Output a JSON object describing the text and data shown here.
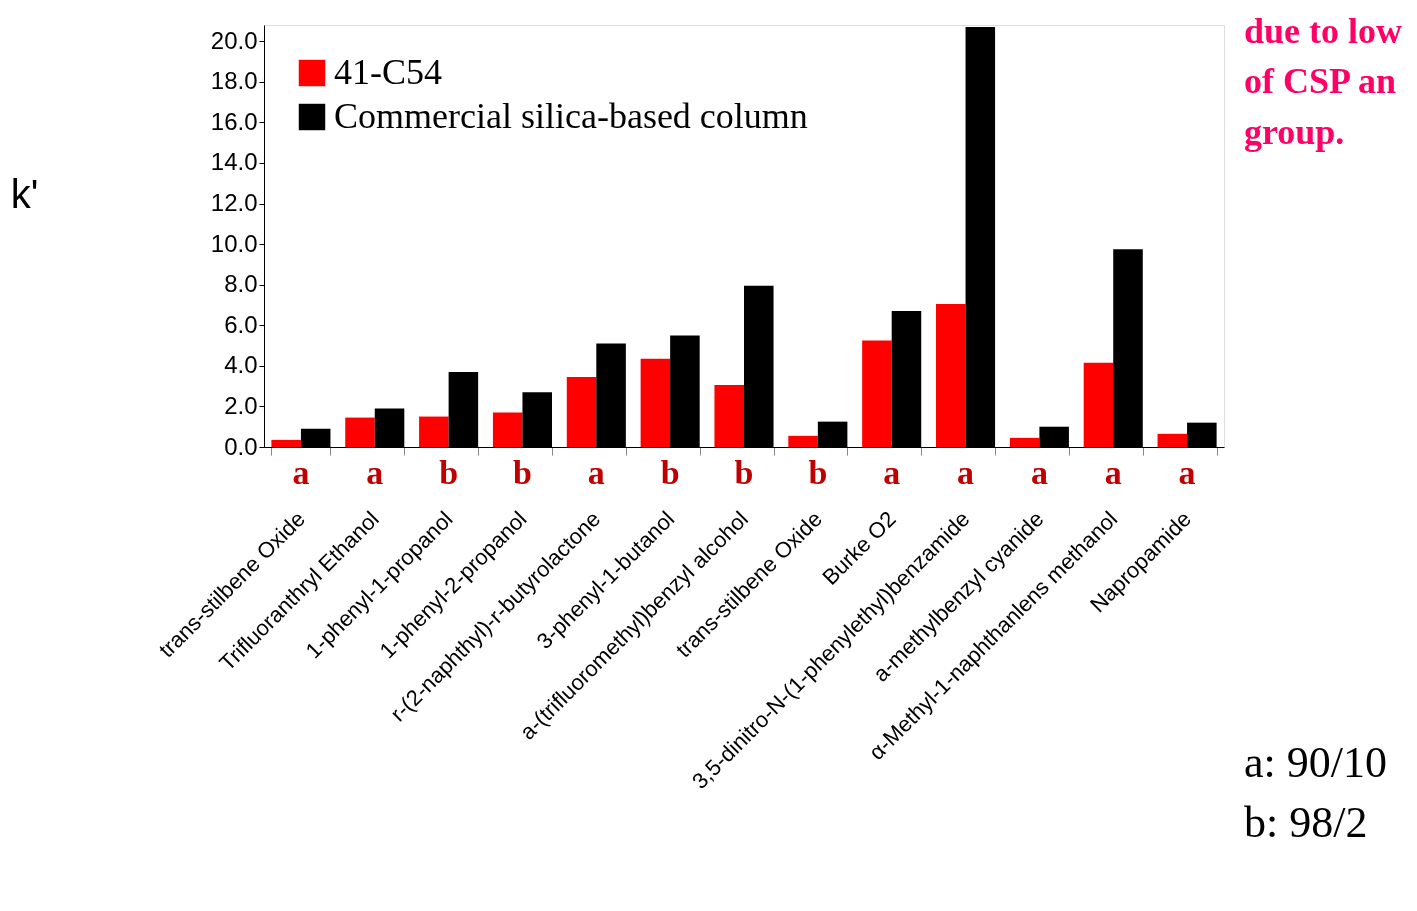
{
  "chart_data": {
    "type": "bar",
    "categories": [
      "trans-stilbene Oxide",
      "Trifluoranthryl Ethanol",
      "1-phenyl-1-propanol",
      "1-phenyl-2-propanol",
      "r-(2-naphthyl)-r-butyrolactone",
      "3-phenyl-1-butanol",
      "a-(trifluoromethyl)benzyl alcohol",
      "trans-stilbene Oxide",
      "Burke O2",
      "3,5-dinitro-N-(1-phenylethyl)benzamide",
      "a-methylbenzyl cyanide",
      "α-Methyl-1-naphthanlens methanol",
      "Napropamide"
    ],
    "series": [
      {
        "name": "41-C54",
        "color": "#ff0000",
        "values": [
          0.35,
          1.45,
          1.5,
          1.7,
          3.45,
          4.35,
          3.05,
          0.55,
          5.25,
          7.05,
          0.45,
          4.15,
          0.65
        ]
      },
      {
        "name": "Commercial silica-based column",
        "color": "#000000",
        "values": [
          0.9,
          1.9,
          3.7,
          2.7,
          5.1,
          5.5,
          7.95,
          1.25,
          6.7,
          20.7,
          1.0,
          9.75,
          1.2
        ]
      }
    ],
    "ylabel": "k'",
    "ylim": [
      0,
      20.8
    ],
    "yticks": [
      {
        "value": 0,
        "label": "0.0"
      },
      {
        "value": 2,
        "label": "2.0"
      },
      {
        "value": 4,
        "label": "4.0"
      },
      {
        "value": 6,
        "label": "6.0"
      },
      {
        "value": 8,
        "label": "8.0"
      },
      {
        "value": 10,
        "label": "10.0"
      },
      {
        "value": 12,
        "label": "12.0"
      },
      {
        "value": 14,
        "label": "14.0"
      },
      {
        "value": 16,
        "label": "16.0"
      },
      {
        "value": 18,
        "label": "18.0"
      },
      {
        "value": 20,
        "label": "20.0"
      }
    ],
    "legend": "top left",
    "grid": false,
    "annotations": [
      "a",
      "a",
      "b",
      "b",
      "a",
      "b",
      "b",
      "b",
      "a",
      "a",
      "a",
      "a",
      "a",
      "due to low\nof CSP an\ngroup.",
      "a:  90/10",
      "b:  98/2"
    ]
  }
}
